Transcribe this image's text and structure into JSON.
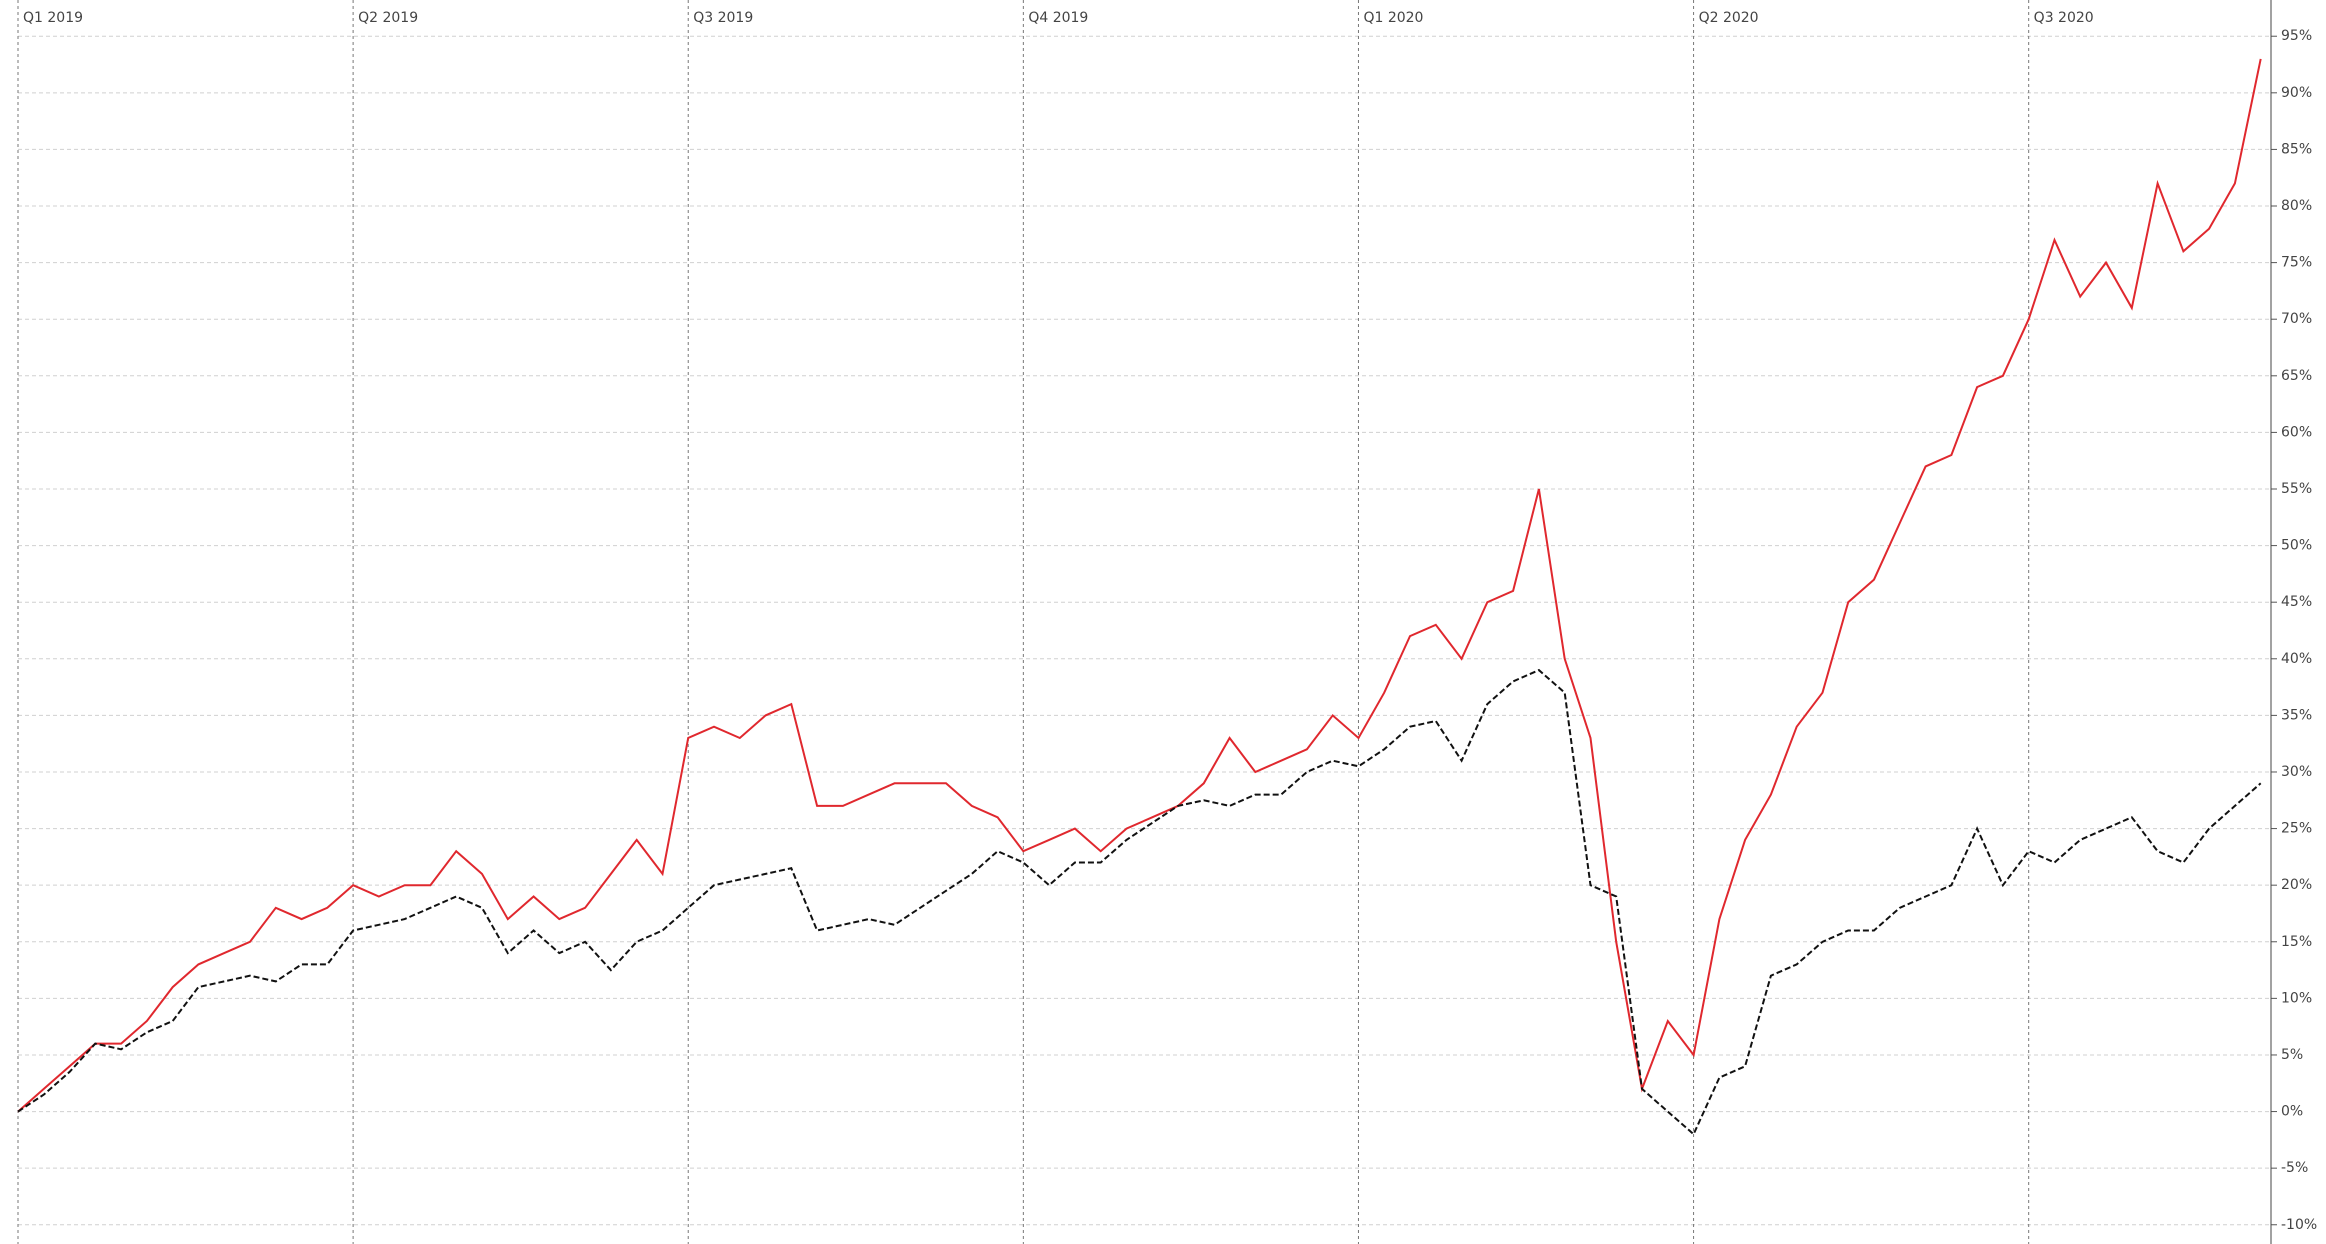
{
  "chart_data": {
    "type": "line",
    "x": [
      0,
      1,
      2,
      3,
      4,
      5,
      6,
      7,
      8,
      9,
      10,
      11,
      12,
      13,
      14,
      15,
      16,
      17,
      18,
      19,
      20,
      21,
      22,
      23,
      24,
      25,
      26,
      27,
      28,
      29,
      30,
      31,
      32,
      33,
      34,
      35,
      36,
      37,
      38,
      39,
      40,
      41,
      42,
      43,
      44,
      45,
      46,
      47,
      48,
      49,
      50,
      51,
      52,
      53,
      54,
      55,
      56,
      57,
      58,
      59,
      60,
      61,
      62,
      63,
      64,
      65,
      66,
      67,
      68,
      69,
      70,
      71,
      72,
      73,
      74,
      75,
      76,
      77,
      78,
      79,
      80,
      81,
      82,
      83,
      84,
      85,
      86,
      87
    ],
    "series": [
      {
        "color": "#e0282e",
        "dash": false,
        "values": [
          0,
          2,
          4,
          6,
          6,
          8,
          11,
          13,
          14,
          15,
          18,
          17,
          18,
          20,
          19,
          20,
          20,
          23,
          21,
          17,
          19,
          17,
          18,
          21,
          24,
          21,
          33,
          34,
          33,
          35,
          36,
          27,
          27,
          28,
          29,
          29,
          29,
          27,
          26,
          23,
          24,
          25,
          23,
          25,
          26,
          27,
          29,
          33,
          30,
          31,
          32,
          35,
          33,
          37,
          42,
          43,
          40,
          45,
          46,
          55,
          40,
          33,
          15,
          2,
          8,
          5,
          17,
          24,
          28,
          34,
          37,
          45,
          47,
          52,
          57,
          58,
          64,
          65,
          70,
          77,
          72,
          75,
          71,
          82,
          76,
          78,
          82,
          93
        ]
      },
      {
        "color": "#111111",
        "dash": true,
        "values": [
          0,
          1.5,
          3.5,
          6,
          5.5,
          7,
          8,
          11,
          11.5,
          12,
          11.5,
          13,
          13,
          16,
          16.5,
          17,
          18,
          19,
          18,
          14,
          16,
          14,
          15,
          12.5,
          15,
          16,
          18,
          20,
          20.5,
          21,
          21.5,
          16,
          16.5,
          17,
          16.5,
          18,
          19.5,
          21,
          23,
          22,
          20,
          22,
          22,
          24,
          25.5,
          27,
          27.5,
          27,
          28,
          28,
          30,
          31,
          30.5,
          32,
          34,
          34.5,
          31,
          36,
          38,
          39,
          37,
          20,
          19,
          2,
          0,
          -2,
          3,
          4,
          12,
          13,
          15,
          16,
          16,
          18,
          19,
          20,
          25,
          20,
          23,
          22,
          24,
          25,
          26,
          23,
          22,
          25,
          27,
          29
        ]
      }
    ],
    "xlim": [
      0,
      87.4
    ],
    "xticks": [
      {
        "value": 0,
        "label": "Q1 2019"
      },
      {
        "value": 13,
        "label": "Q2 2019"
      },
      {
        "value": 26,
        "label": "Q3 2019"
      },
      {
        "value": 39,
        "label": "Q4 2019"
      },
      {
        "value": 52,
        "label": "Q1 2020"
      },
      {
        "value": 65,
        "label": "Q2 2020"
      },
      {
        "value": 78,
        "label": "Q3 2020"
      }
    ],
    "ylim": [
      -11.7,
      98.2
    ],
    "yticks": [
      {
        "value": -10,
        "label": "-10%"
      },
      {
        "value": -5,
        "label": "-5%"
      },
      {
        "value": 0,
        "label": "0%"
      },
      {
        "value": 5,
        "label": "5%"
      },
      {
        "value": 10,
        "label": "10%"
      },
      {
        "value": 15,
        "label": "15%"
      },
      {
        "value": 20,
        "label": "20%"
      },
      {
        "value": 25,
        "label": "25%"
      },
      {
        "value": 30,
        "label": "30%"
      },
      {
        "value": 35,
        "label": "35%"
      },
      {
        "value": 40,
        "label": "40%"
      },
      {
        "value": 45,
        "label": "45%"
      },
      {
        "value": 50,
        "label": "50%"
      },
      {
        "value": 55,
        "label": "55%"
      },
      {
        "value": 60,
        "label": "60%"
      },
      {
        "value": 65,
        "label": "65%"
      },
      {
        "value": 70,
        "label": "70%"
      },
      {
        "value": 75,
        "label": "75%"
      },
      {
        "value": 80,
        "label": "80%"
      },
      {
        "value": 85,
        "label": "85%"
      },
      {
        "value": 90,
        "label": "90%"
      },
      {
        "value": 95,
        "label": "95%"
      }
    ],
    "grid": true
  }
}
